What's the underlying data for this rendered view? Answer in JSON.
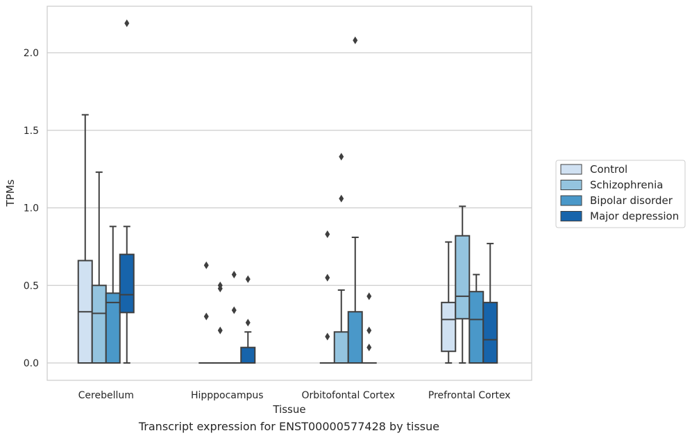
{
  "chart_data": {
    "type": "box",
    "xlabel": "Tissue",
    "ylabel": "TPMs",
    "ylim": [
      -0.1,
      2.3
    ],
    "yticks": [
      0.0,
      0.5,
      1.0,
      1.5,
      2.0
    ],
    "ytick_labels": [
      "0.0",
      "0.5",
      "1.0",
      "1.5",
      "2.0"
    ],
    "grid": "horizontal",
    "legend_position": "right",
    "categories": [
      "Cerebellum",
      "Hipppocampus",
      "Orbitofontal Cortex",
      "Prefrontal Cortex"
    ],
    "series": [
      {
        "name": "Control",
        "color": "#d0e1f2",
        "boxes": [
          {
            "min": 0.0,
            "q1": 0.0,
            "median": 0.33,
            "q3": 0.66,
            "max": 1.6,
            "outliers": []
          },
          {
            "min": 0.0,
            "q1": 0.0,
            "median": 0.0,
            "q3": 0.0,
            "max": 0.0,
            "outliers": [
              0.63,
              0.3
            ]
          },
          {
            "min": 0.0,
            "q1": 0.0,
            "median": 0.0,
            "q3": 0.0,
            "max": 0.0,
            "outliers": [
              0.83,
              0.55,
              0.17
            ]
          },
          {
            "min": 0.0,
            "q1": 0.075,
            "median": 0.28,
            "q3": 0.39,
            "max": 0.78,
            "outliers": []
          }
        ]
      },
      {
        "name": "Schizophrenia",
        "color": "#94c4df",
        "boxes": [
          {
            "min": 0.0,
            "q1": 0.0,
            "median": 0.32,
            "q3": 0.5,
            "max": 1.23,
            "outliers": []
          },
          {
            "min": 0.0,
            "q1": 0.0,
            "median": 0.0,
            "q3": 0.0,
            "max": 0.0,
            "outliers": [
              0.5,
              0.48,
              0.21
            ]
          },
          {
            "min": 0.0,
            "q1": 0.0,
            "median": 0.0,
            "q3": 0.2,
            "max": 0.47,
            "outliers": [
              1.33,
              1.06
            ]
          },
          {
            "min": 0.0,
            "q1": 0.285,
            "median": 0.43,
            "q3": 0.82,
            "max": 1.01,
            "outliers": []
          }
        ]
      },
      {
        "name": "Bipolar disorder",
        "color": "#4a98c9",
        "boxes": [
          {
            "min": 0.0,
            "q1": 0.0,
            "median": 0.39,
            "q3": 0.45,
            "max": 0.88,
            "outliers": []
          },
          {
            "min": 0.0,
            "q1": 0.0,
            "median": 0.0,
            "q3": 0.0,
            "max": 0.0,
            "outliers": [
              0.57,
              0.34
            ]
          },
          {
            "min": 0.0,
            "q1": 0.0,
            "median": 0.0,
            "q3": 0.33,
            "max": 0.81,
            "outliers": [
              2.08
            ]
          },
          {
            "min": 0.0,
            "q1": 0.0,
            "median": 0.28,
            "q3": 0.46,
            "max": 0.57,
            "outliers": []
          }
        ]
      },
      {
        "name": "Major depression",
        "color": "#1764ab",
        "boxes": [
          {
            "min": 0.0,
            "q1": 0.325,
            "median": 0.44,
            "q3": 0.7,
            "max": 0.88,
            "outliers": [
              2.19
            ]
          },
          {
            "min": 0.0,
            "q1": 0.0,
            "median": 0.0,
            "q3": 0.1,
            "max": 0.2,
            "outliers": [
              0.54,
              0.26
            ]
          },
          {
            "min": 0.0,
            "q1": 0.0,
            "median": 0.0,
            "q3": 0.0,
            "max": 0.0,
            "outliers": [
              0.43,
              0.21,
              0.1
            ]
          },
          {
            "min": 0.0,
            "q1": 0.0,
            "median": 0.15,
            "q3": 0.39,
            "max": 0.77,
            "outliers": []
          }
        ]
      }
    ]
  },
  "caption": "Transcript expression for ENST00000577428 by tissue"
}
